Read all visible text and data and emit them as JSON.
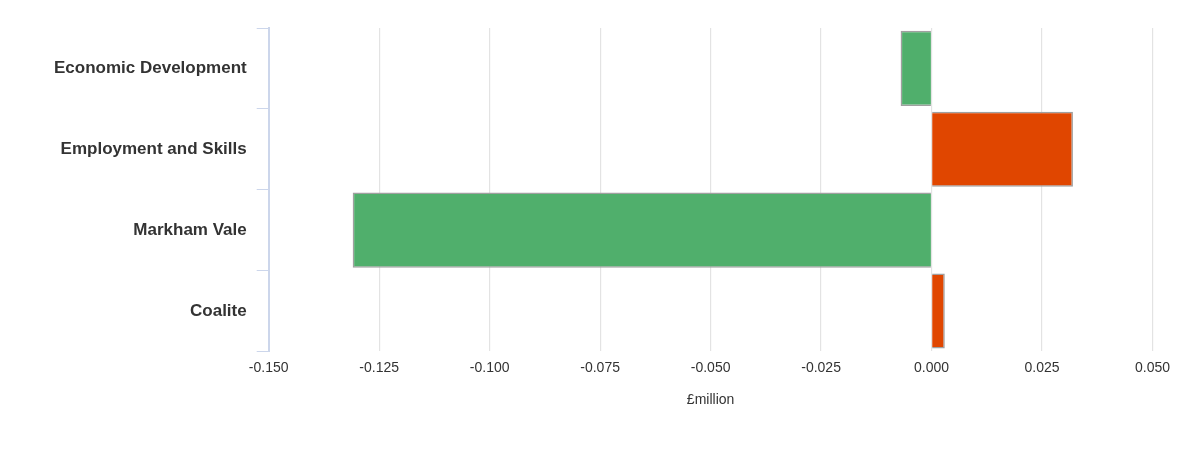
{
  "chart_data": {
    "type": "bar",
    "orientation": "horizontal",
    "xlabel": "£million",
    "categories": [
      "Economic Development",
      "Employment and Skills",
      "Markham Vale",
      "Coalite"
    ],
    "values": [
      -0.007,
      0.032,
      -0.131,
      0.003
    ],
    "colors": [
      "#50af6c",
      "#e04600",
      "#50af6c",
      "#e04600"
    ],
    "xlim": [
      -0.15,
      0.05
    ],
    "xticks": [
      {
        "value": -0.15,
        "label": "-0.150"
      },
      {
        "value": -0.125,
        "label": "-0.125"
      },
      {
        "value": -0.1,
        "label": "-0.100"
      },
      {
        "value": -0.075,
        "label": "-0.075"
      },
      {
        "value": -0.05,
        "label": "-0.050"
      },
      {
        "value": -0.025,
        "label": "-0.025"
      },
      {
        "value": 0,
        "label": "0.000"
      },
      {
        "value": 0.025,
        "label": "0.025"
      },
      {
        "value": 0.05,
        "label": "0.050"
      }
    ],
    "grid": "x",
    "legend": false
  }
}
